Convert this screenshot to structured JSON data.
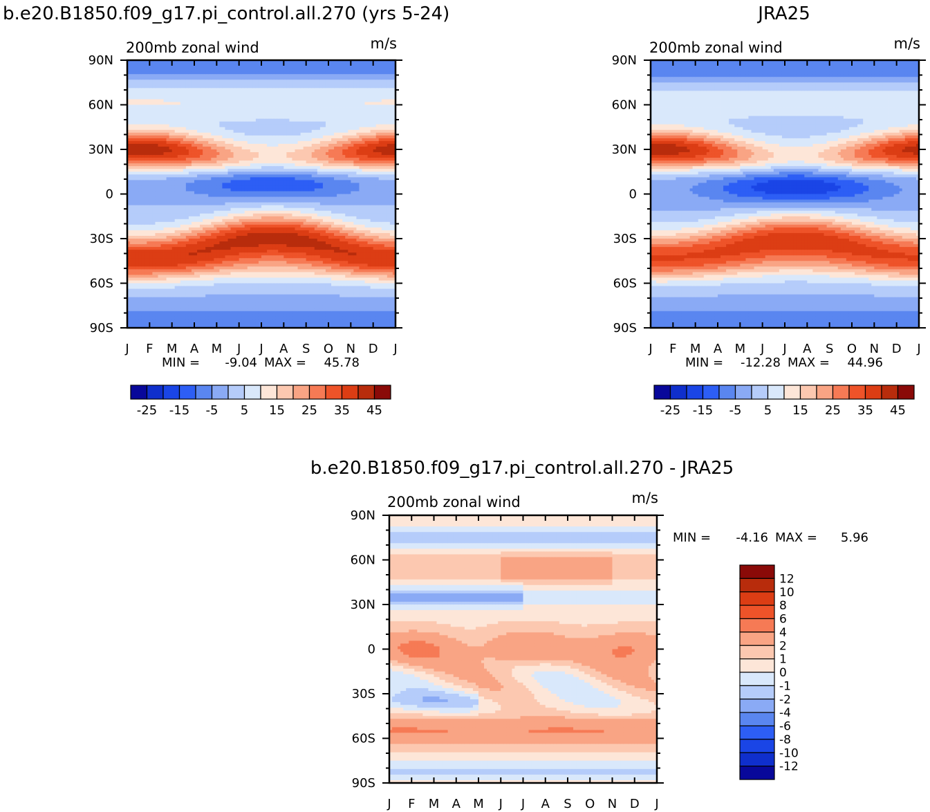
{
  "chart_data": [
    {
      "type": "heatmap",
      "title": "b.e20.B1850.f09_g17.pi_control.all.270 (yrs 5-24)",
      "subtitle_left": "200mb zonal wind",
      "subtitle_right": "m/s",
      "x_ticks": [
        "J",
        "F",
        "M",
        "A",
        "M",
        "J",
        "J",
        "A",
        "S",
        "O",
        "N",
        "D",
        "J"
      ],
      "y_ticks": [
        "90N",
        "60N",
        "30N",
        "0",
        "30S",
        "60S",
        "90S"
      ],
      "stats": {
        "min_label": "MIN =",
        "min": "-9.04",
        "max_label": "MAX =",
        "max": "45.78"
      },
      "colorbar": {
        "levels": [
          -30,
          -25,
          -20,
          -15,
          -10,
          -5,
          0,
          5,
          10,
          15,
          20,
          25,
          30,
          35,
          40,
          45
        ],
        "labels": [
          "-25",
          "-15",
          "-5",
          "5",
          "15",
          "25",
          "35",
          "45"
        ],
        "colors": [
          "#08089a",
          "#0f2fcc",
          "#1a45e6",
          "#2d5ef5",
          "#5a86f0",
          "#8aaaf5",
          "#b5ccfa",
          "#d9e8fb",
          "#fde6d8",
          "#fcc8b0",
          "#f9a484",
          "#f67a55",
          "#ee5329",
          "#dc3d14",
          "#b82c0c",
          "#8a0a08"
        ]
      }
    },
    {
      "type": "heatmap",
      "title": "JRA25",
      "subtitle_left": "200mb zonal wind",
      "subtitle_right": "m/s",
      "x_ticks": [
        "J",
        "F",
        "M",
        "A",
        "M",
        "J",
        "J",
        "A",
        "S",
        "O",
        "N",
        "D",
        "J"
      ],
      "y_ticks": [
        "90N",
        "60N",
        "30N",
        "0",
        "30S",
        "60S",
        "90S"
      ],
      "stats": {
        "min_label": "MIN =",
        "min": "-12.28",
        "max_label": "MAX =",
        "max": "44.96"
      },
      "colorbar": {
        "levels": [
          -30,
          -25,
          -20,
          -15,
          -10,
          -5,
          0,
          5,
          10,
          15,
          20,
          25,
          30,
          35,
          40,
          45
        ],
        "labels": [
          "-25",
          "-15",
          "-5",
          "5",
          "15",
          "25",
          "35",
          "45"
        ],
        "colors": [
          "#08089a",
          "#0f2fcc",
          "#1a45e6",
          "#2d5ef5",
          "#5a86f0",
          "#8aaaf5",
          "#b5ccfa",
          "#d9e8fb",
          "#fde6d8",
          "#fcc8b0",
          "#f9a484",
          "#f67a55",
          "#ee5329",
          "#dc3d14",
          "#b82c0c",
          "#8a0a08"
        ]
      }
    },
    {
      "type": "heatmap",
      "title": "b.e20.B1850.f09_g17.pi_control.all.270 - JRA25",
      "subtitle_left": "200mb zonal wind",
      "subtitle_right": "m/s",
      "x_ticks": [
        "J",
        "F",
        "M",
        "A",
        "M",
        "J",
        "J",
        "A",
        "S",
        "O",
        "N",
        "D",
        "J"
      ],
      "y_ticks": [
        "90N",
        "60N",
        "30N",
        "0",
        "30S",
        "60S",
        "90S"
      ],
      "stats": {
        "min_label": "MIN =",
        "min": "-4.16",
        "max_label": "MAX =",
        "max": "5.96"
      },
      "colorbar": {
        "labels": [
          "12",
          "10",
          "8",
          "6",
          "4",
          "2",
          "1",
          "0",
          "-1",
          "-2",
          "-4",
          "-6",
          "-8",
          "-10",
          "-12"
        ],
        "colors": [
          "#8a0a08",
          "#b82c0c",
          "#dc3d14",
          "#ee5329",
          "#f67a55",
          "#f9a484",
          "#fcc8b0",
          "#fde6d8",
          "#d9e8fb",
          "#b5ccfa",
          "#8aaaf5",
          "#5a86f0",
          "#2d5ef5",
          "#1a45e6",
          "#0f2fcc",
          "#08089a"
        ]
      }
    }
  ]
}
